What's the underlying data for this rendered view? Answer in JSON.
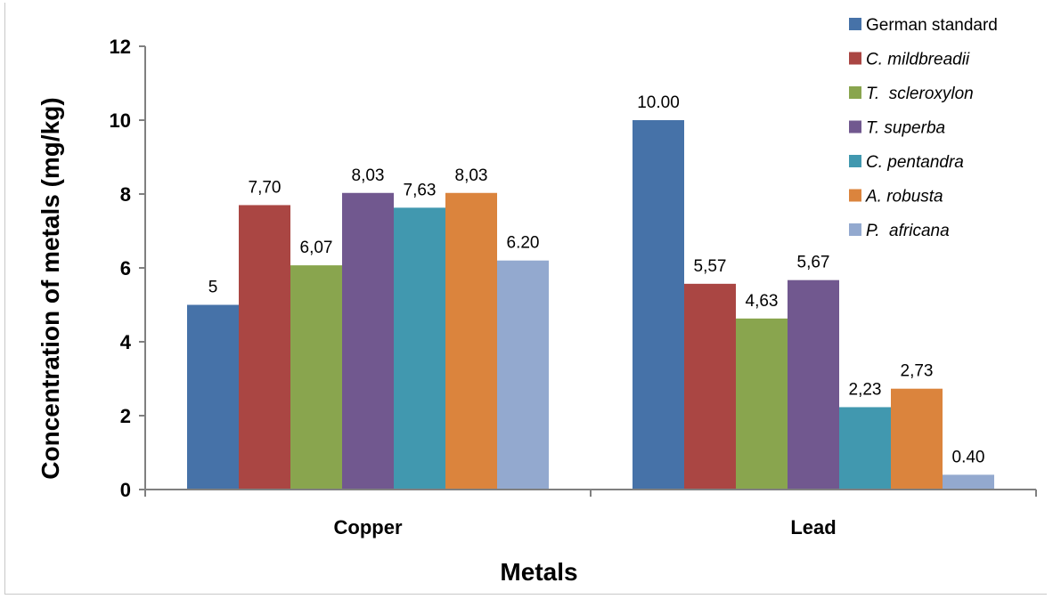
{
  "chart_data": {
    "type": "bar",
    "title": "",
    "xlabel": "Metals",
    "ylabel": "Concentration of metals (mg/kg)",
    "categories": [
      "Copper",
      "Lead"
    ],
    "ylim": [
      0,
      12
    ],
    "yticks": [
      0,
      2,
      4,
      6,
      8,
      10,
      12
    ],
    "grid": false,
    "legend_position": "top-right",
    "series": [
      {
        "name": "German standard",
        "italic": false,
        "color": "#4672A8",
        "values": [
          5,
          10.0
        ],
        "labels": [
          "5",
          "10.00"
        ]
      },
      {
        "name": "C. mildbreadii",
        "italic": true,
        "color": "#AA4643",
        "values": [
          7.7,
          5.57
        ],
        "labels": [
          "7,70",
          "5,57"
        ]
      },
      {
        "name": "T.  scleroxylon",
        "italic": true,
        "color": "#89A54E",
        "values": [
          6.07,
          4.63
        ],
        "labels": [
          "6,07",
          "4,63"
        ]
      },
      {
        "name": "T. superba",
        "italic": true,
        "color": "#71588F",
        "values": [
          8.03,
          5.67
        ],
        "labels": [
          "8,03",
          "5,67"
        ]
      },
      {
        "name": "C. pentandra",
        "italic": true,
        "color": "#4198AF",
        "values": [
          7.63,
          2.23
        ],
        "labels": [
          "7,63",
          "2,23"
        ]
      },
      {
        "name": "A. robusta",
        "italic": true,
        "color": "#DB843D",
        "values": [
          8.03,
          2.73
        ],
        "labels": [
          "8,03",
          "2,73"
        ]
      },
      {
        "name": "P.  africana",
        "italic": true,
        "color": "#93A9CF",
        "values": [
          6.2,
          0.4
        ],
        "labels": [
          "6.20",
          "0.40"
        ]
      }
    ]
  }
}
